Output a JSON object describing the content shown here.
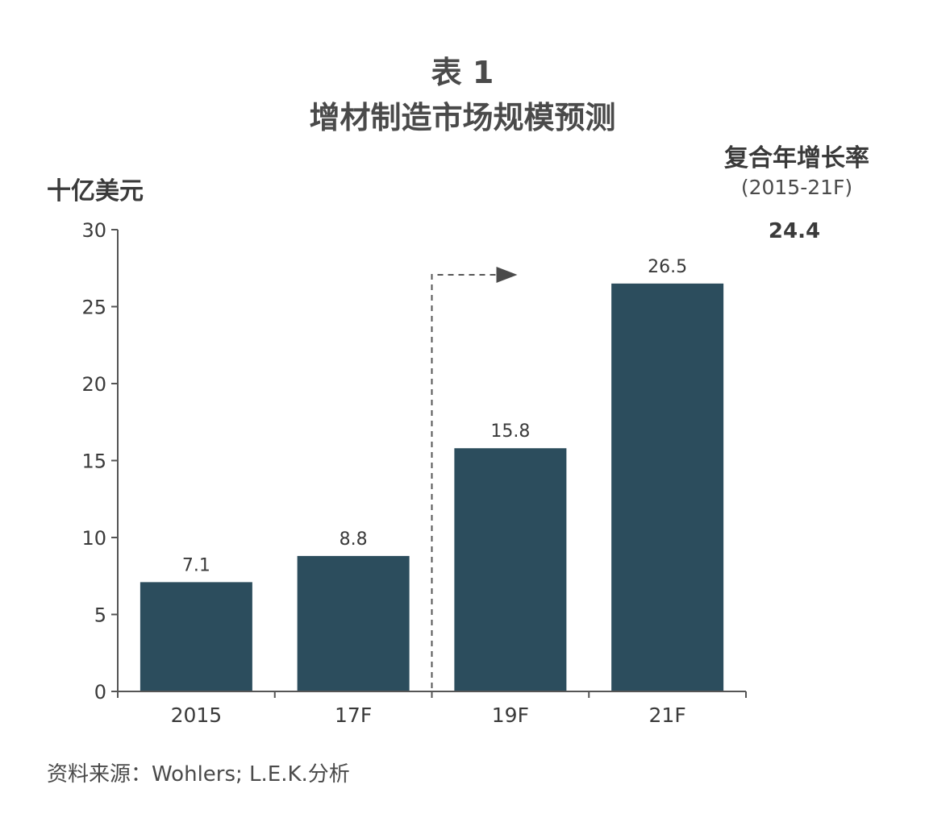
{
  "title": {
    "line1": "表 1",
    "line2": "增材制造市场规模预测"
  },
  "unit_label": "十亿美元",
  "cagr": {
    "title": "复合年增长率",
    "period": "(2015-21F)",
    "value": "24.4"
  },
  "source": "资料来源：Wohlers; L.E.K.分析",
  "colors": {
    "bar": "#2c4d5d",
    "axis": "#555555",
    "text": "#3a3a3a"
  },
  "chart_data": {
    "type": "bar",
    "title": "增材制造市场规模预测",
    "ylabel": "十亿美元",
    "categories": [
      "2015",
      "17F",
      "19F",
      "21F"
    ],
    "values": [
      7.1,
      8.8,
      15.8,
      26.5
    ],
    "value_labels": [
      "7.1",
      "8.8",
      "15.8",
      "26.5"
    ],
    "ylim": [
      0,
      30
    ],
    "yticks": [
      0,
      5,
      10,
      15,
      20,
      25,
      30
    ],
    "grid": false,
    "legend": "none",
    "annotation": "dashed arrow from between 17F and 19F pointing toward 19F"
  }
}
